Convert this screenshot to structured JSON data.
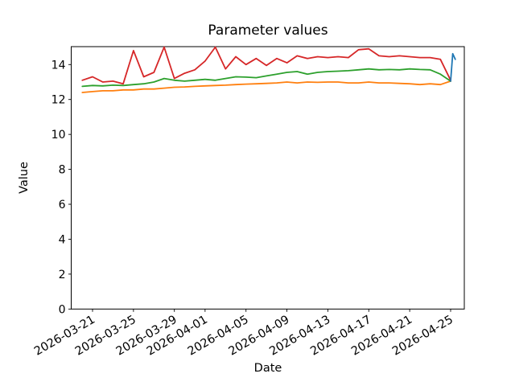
{
  "window": {
    "background": "#ffffff"
  },
  "chart_data": {
    "type": "line",
    "title": "Parameter values",
    "xlabel": "Date",
    "ylabel": "Value",
    "grid": false,
    "legend": "none",
    "ylim": [
      0,
      15.05
    ],
    "xlim": [
      "2026-03-18T22:00",
      "2026-04-26T08:00"
    ],
    "y_ticks": [
      "0",
      "2",
      "4",
      "6",
      "8",
      "10",
      "12",
      "14"
    ],
    "x_ticks": [
      "2026-03-21",
      "2026-03-25",
      "2026-03-29",
      "2026-04-01",
      "2026-04-05",
      "2026-04-09",
      "2026-04-13",
      "2026-04-17",
      "2026-04-21",
      "2026-04-25"
    ],
    "x_tick_rotation_deg": 30,
    "dates": [
      "2026-03-20",
      "2026-03-21",
      "2026-03-22",
      "2026-03-23",
      "2026-03-24",
      "2026-03-25",
      "2026-03-26",
      "2026-03-27",
      "2026-03-28",
      "2026-03-29",
      "2026-03-30",
      "2026-03-31",
      "2026-04-01",
      "2026-04-02",
      "2026-04-03",
      "2026-04-04",
      "2026-04-05",
      "2026-04-06",
      "2026-04-07",
      "2026-04-08",
      "2026-04-09",
      "2026-04-10",
      "2026-04-11",
      "2026-04-12",
      "2026-04-13",
      "2026-04-14",
      "2026-04-15",
      "2026-04-16",
      "2026-04-17",
      "2026-04-18",
      "2026-04-19",
      "2026-04-20",
      "2026-04-21",
      "2026-04-22",
      "2026-04-23",
      "2026-04-24",
      "2026-04-25"
    ],
    "series": [
      {
        "name": "orange",
        "color": "#ff7f0e",
        "values": [
          12.4,
          12.45,
          12.5,
          12.5,
          12.55,
          12.55,
          12.6,
          12.6,
          12.65,
          12.7,
          12.72,
          12.75,
          12.78,
          12.8,
          12.82,
          12.85,
          12.88,
          12.9,
          12.92,
          12.95,
          13.0,
          12.95,
          13.0,
          12.98,
          13.0,
          13.0,
          12.95,
          12.95,
          13.0,
          12.95,
          12.95,
          12.92,
          12.9,
          12.85,
          12.9,
          12.85,
          13.05
        ]
      },
      {
        "name": "green",
        "color": "#2ca02c",
        "values": [
          12.75,
          12.8,
          12.78,
          12.82,
          12.8,
          12.85,
          12.9,
          13.0,
          13.2,
          13.1,
          13.05,
          13.1,
          13.15,
          13.1,
          13.2,
          13.3,
          13.28,
          13.25,
          13.35,
          13.45,
          13.55,
          13.6,
          13.45,
          13.55,
          13.6,
          13.62,
          13.65,
          13.7,
          13.75,
          13.7,
          13.72,
          13.7,
          13.75,
          13.72,
          13.7,
          13.45,
          13.05
        ]
      },
      {
        "name": "red",
        "color": "#d62728",
        "values": [
          13.1,
          13.3,
          13.0,
          13.05,
          12.9,
          14.8,
          13.3,
          13.55,
          15.0,
          13.2,
          13.5,
          13.7,
          14.2,
          15.0,
          13.75,
          14.45,
          14.0,
          14.35,
          13.95,
          14.35,
          14.1,
          14.5,
          14.35,
          14.45,
          14.4,
          14.45,
          14.4,
          14.85,
          14.9,
          14.5,
          14.45,
          14.5,
          14.45,
          14.4,
          14.4,
          14.3,
          13.1
        ]
      },
      {
        "name": "blue",
        "color": "#1f77b4",
        "points": [
          [
            "2026-04-25T00:00",
            13.05
          ],
          [
            "2026-04-25T05:00",
            14.62
          ],
          [
            "2026-04-25T11:00",
            14.3
          ]
        ]
      }
    ]
  }
}
